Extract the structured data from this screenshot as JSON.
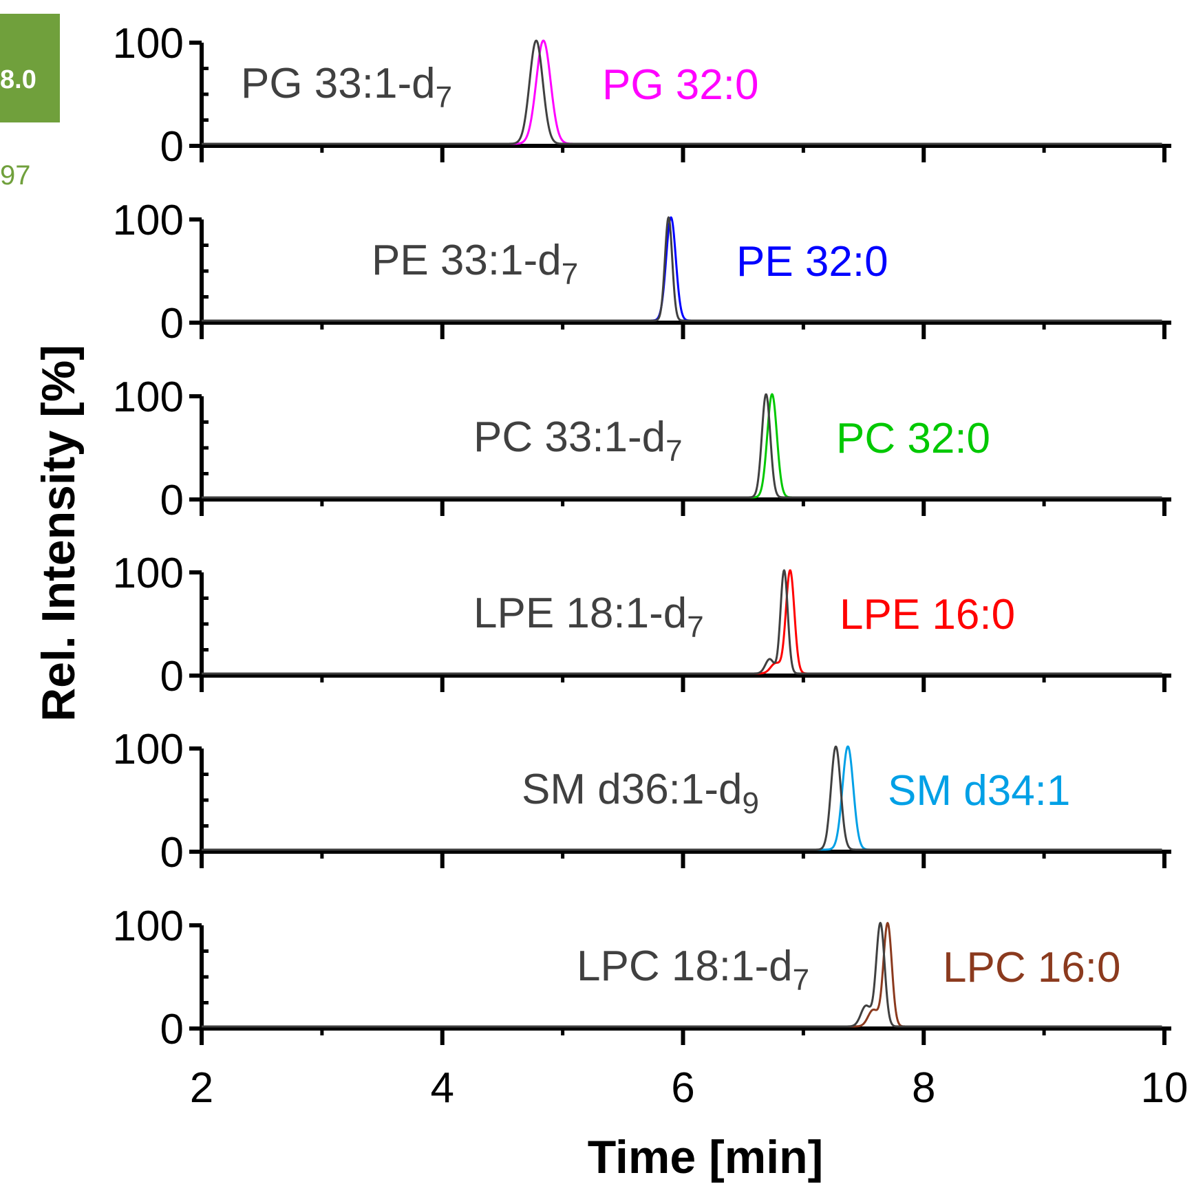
{
  "badge": {
    "text": "8.0",
    "subtext": "97",
    "color": "#70a03c"
  },
  "chart_data": {
    "type": "line",
    "xlabel": "Time [min]",
    "ylabel": "Rel. Intensity [%]",
    "xlim": [
      2,
      10
    ],
    "x_ticks": [
      "2",
      "4",
      "6",
      "8",
      "10"
    ],
    "ylim": [
      0,
      100
    ],
    "y_ticks": [
      "0",
      "100"
    ],
    "panels": [
      {
        "standard": {
          "label": "PG 33:1-d",
          "sub": "7",
          "rt": 4.78,
          "width": 0.055,
          "color": "#404040"
        },
        "analyte": {
          "label": "PG 32:0",
          "rt": 4.84,
          "width": 0.06,
          "color": "#ff00ff"
        }
      },
      {
        "standard": {
          "label": "PE 33:1-d",
          "sub": "7",
          "rt": 5.88,
          "width": 0.03,
          "color": "#404040"
        },
        "analyte": {
          "label": "PE 32:0",
          "rt": 5.9,
          "width": 0.04,
          "color": "#0000ff"
        }
      },
      {
        "standard": {
          "label": "PC 33:1-d",
          "sub": "7",
          "rt": 6.69,
          "width": 0.035,
          "color": "#404040"
        },
        "analyte": {
          "label": "PC 32:0",
          "rt": 6.74,
          "width": 0.04,
          "color": "#00c800"
        }
      },
      {
        "standard": {
          "label": "LPE 18:1-d",
          "sub": "7",
          "rt": 6.84,
          "width": 0.03,
          "color": "#404040",
          "shoulder": {
            "rt": 6.72,
            "height": 14
          }
        },
        "analyte": {
          "label": "LPE 16:0",
          "rt": 6.89,
          "width": 0.035,
          "color": "#ff0000",
          "shoulder": {
            "rt": 6.77,
            "height": 10
          }
        }
      },
      {
        "standard": {
          "label": "SM d36:1-d",
          "sub": "9",
          "rt": 7.27,
          "width": 0.04,
          "color": "#404040"
        },
        "analyte": {
          "label": "SM d34:1",
          "rt": 7.37,
          "width": 0.045,
          "color": "#00a0e6"
        }
      },
      {
        "standard": {
          "label": "LPC 18:1-d",
          "sub": "7",
          "rt": 7.64,
          "width": 0.035,
          "color": "#404040",
          "shoulder": {
            "rt": 7.52,
            "height": 20
          }
        },
        "analyte": {
          "label": "LPC 16:0",
          "rt": 7.7,
          "width": 0.035,
          "color": "#8b3a1e",
          "shoulder": {
            "rt": 7.58,
            "height": 16
          }
        }
      }
    ]
  }
}
